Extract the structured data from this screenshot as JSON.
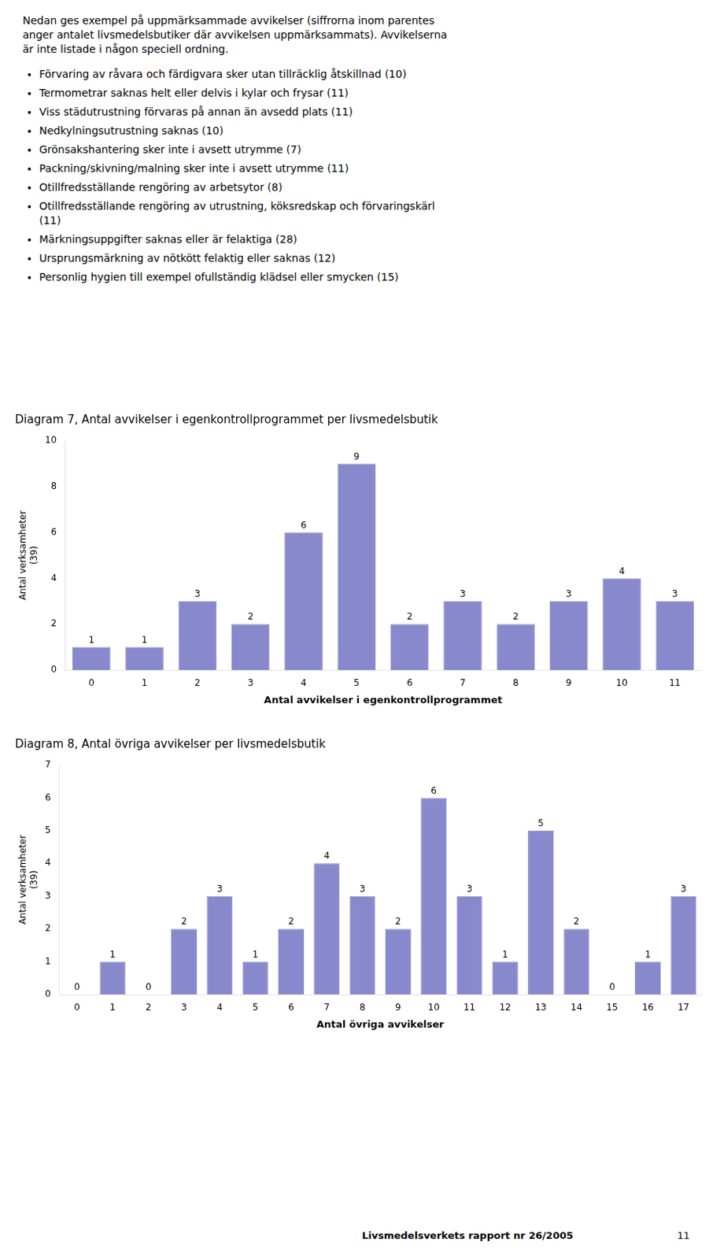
{
  "text": [
    "Nedan ges exempel på uppmärksammade avvikelser (siffrorna inom parentes",
    "anger antalet livsmedelsbutiker där avvikelsen uppmärksammats). Avvikelserna",
    "är inte listade i någon speciell ordning."
  ],
  "bullet_points": [
    "Förvaring av råvara och färdigvara sker utan tillräcklig åtskillnad (10)",
    "Termometrar saknas helt eller delvis i kylar och frysar (11)",
    "Viss städutrustning förvaras på annan än avsedd plats (11)",
    "Nedkylningsutrustning saknas (10)",
    "Grönsakshantering sker inte i avsett utrymme (7)",
    "Packning/skivning/malning sker inte i avsett utrymme (11)",
    "Otillfredsställande rengöring av arbetsytor (8)",
    "Otillfredsställande rengöring av utrustning, köksredskap och förvaringskärl\n(11)",
    "Märkningsuppgifter saknas eller är felaktiga (28)",
    "Ursprungsmärkning av nötkött felaktig eller saknas (12)",
    "Personlig hygien till exempel ofullständig klädsel eller smycken (15)"
  ],
  "footer": [
    "Livsmedelsverkets rapport nr 26/2005",
    "11"
  ],
  "chart_data": [
    {
      "type": "bar",
      "title": "Diagram 7, Antal avvikelser i egenkontrollprogrammet per livsmedelsbutik",
      "x_label": "Antal avvikelser i egenkontrollprogrammet",
      "y_label": "Antal verksamheter\n(39)",
      "categories": [
        "0",
        "1",
        "2",
        "3",
        "4",
        "5",
        "6",
        "7",
        "8",
        "9",
        "10",
        "11"
      ],
      "values": [
        1,
        1,
        3,
        2,
        6,
        9,
        2,
        3,
        2,
        3,
        4,
        3
      ],
      "color": "#8888cc",
      "ylim": [
        0,
        10
      ],
      "yticks": [
        0,
        2,
        4,
        6,
        8,
        10
      ],
      "grid": false,
      "data_labels": true
    },
    {
      "type": "bar",
      "title": "Diagram 8, Antal övriga avvikelser per livsmedelsbutik",
      "x_label": "Antal övriga avvikelser",
      "y_label": "Antal verksamheter\n(39)",
      "categories": [
        "0",
        "1",
        "2",
        "3",
        "4",
        "5",
        "6",
        "7",
        "8",
        "9",
        "10",
        "11",
        "12",
        "13",
        "14",
        "15",
        "16",
        "17"
      ],
      "values": [
        0,
        1,
        0,
        2,
        3,
        1,
        2,
        4,
        3,
        2,
        6,
        3,
        1,
        5,
        2,
        0,
        1,
        3
      ],
      "color": "#8888cc",
      "ylim": [
        0,
        7
      ],
      "yticks": [
        0,
        1,
        2,
        3,
        4,
        5,
        6,
        7
      ],
      "grid": false,
      "data_labels": true
    }
  ]
}
